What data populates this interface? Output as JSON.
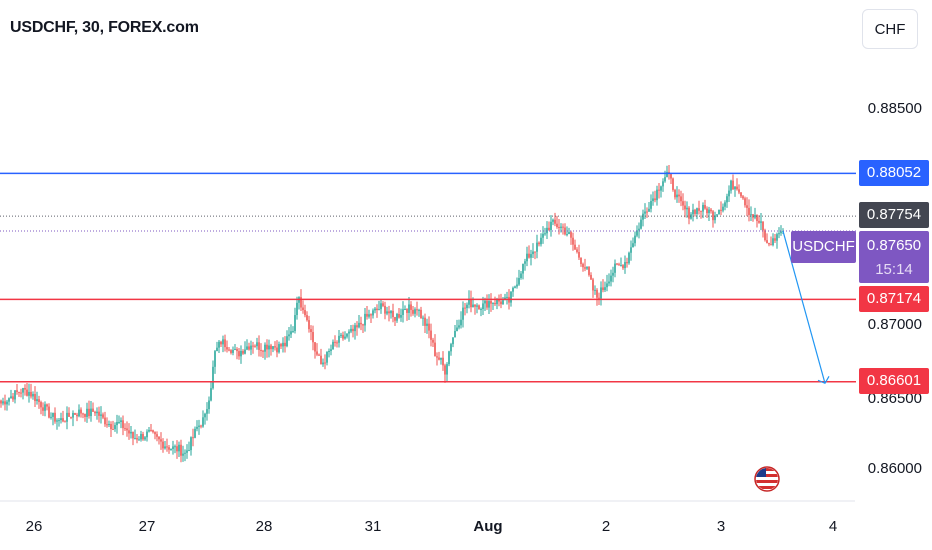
{
  "header": {
    "title": "USDCHF, 30, FOREX.com",
    "currency_button": "CHF"
  },
  "price_scale": {
    "ticks": [
      "0.88500",
      "0.87000",
      "0.86500",
      "0.86000"
    ],
    "labels": {
      "resistance": "0.88052",
      "prev_close": "0.87754",
      "current_symbol": "USDCHF",
      "current_price": "0.87650",
      "countdown": "15:14",
      "support_1": "0.87174",
      "support_2": "0.86601"
    }
  },
  "time_scale": {
    "ticks": [
      "26",
      "27",
      "28",
      "31",
      "Aug",
      "2",
      "3",
      "4"
    ]
  },
  "colors": {
    "bull": "#26a69a",
    "bear": "#ef5350",
    "resistance_line": "#2962ff",
    "support_line": "#f23645",
    "current_label": "#7e57c2",
    "prev_close_label": "#434651",
    "projection_arrow": "#2196f3"
  },
  "chart_data": {
    "type": "candlestick",
    "symbol": "USDCHF",
    "interval": "30",
    "exchange": "FOREX.com",
    "ylim": [
      0.8575,
      0.8905
    ],
    "horizontal_levels": [
      {
        "kind": "resistance",
        "value": 0.88052
      },
      {
        "kind": "support",
        "value": 0.87174
      },
      {
        "kind": "support",
        "value": 0.86601
      }
    ],
    "last_price": 0.8765,
    "previous_close": 0.87754,
    "projection": {
      "from": 0.8765,
      "to": 0.8659,
      "direction": "down"
    },
    "price_path": [
      [
        0,
        0.8645
      ],
      [
        4,
        0.8649
      ],
      [
        10,
        0.8654
      ],
      [
        14,
        0.8653
      ],
      [
        17,
        0.8649
      ],
      [
        21,
        0.8643
      ],
      [
        25,
        0.8636
      ],
      [
        29,
        0.8633
      ],
      [
        33,
        0.8635
      ],
      [
        36,
        0.8638
      ],
      [
        40,
        0.8639
      ],
      [
        44,
        0.8638
      ],
      [
        47,
        0.864
      ],
      [
        51,
        0.8634
      ],
      [
        55,
        0.863
      ],
      [
        59,
        0.8631
      ],
      [
        62,
        0.8628
      ],
      [
        66,
        0.8621
      ],
      [
        70,
        0.8622
      ],
      [
        74,
        0.8624
      ],
      [
        78,
        0.862
      ],
      [
        81,
        0.8617
      ],
      [
        85,
        0.8614
      ],
      [
        89,
        0.8613
      ],
      [
        92,
        0.861
      ],
      [
        95,
        0.8618
      ],
      [
        98,
        0.8628
      ],
      [
        102,
        0.8635
      ],
      [
        105,
        0.8658
      ],
      [
        107,
        0.868
      ],
      [
        110,
        0.8688
      ],
      [
        114,
        0.8685
      ],
      [
        118,
        0.8679
      ],
      [
        122,
        0.8684
      ],
      [
        126,
        0.8687
      ],
      [
        130,
        0.8684
      ],
      [
        134,
        0.8686
      ],
      [
        138,
        0.8684
      ],
      [
        142,
        0.8686
      ],
      [
        146,
        0.8697
      ],
      [
        148,
        0.8718
      ],
      [
        151,
        0.8713
      ],
      [
        154,
        0.87
      ],
      [
        157,
        0.8682
      ],
      [
        160,
        0.8672
      ],
      [
        163,
        0.8678
      ],
      [
        166,
        0.8685
      ],
      [
        170,
        0.869
      ],
      [
        174,
        0.8693
      ],
      [
        178,
        0.8697
      ],
      [
        182,
        0.8704
      ],
      [
        186,
        0.8708
      ],
      [
        190,
        0.8712
      ],
      [
        193,
        0.871
      ],
      [
        196,
        0.8704
      ],
      [
        199,
        0.8707
      ],
      [
        202,
        0.8712
      ],
      [
        205,
        0.871
      ],
      [
        208,
        0.8712
      ],
      [
        211,
        0.8703
      ],
      [
        214,
        0.8695
      ],
      [
        217,
        0.868
      ],
      [
        220,
        0.8674
      ],
      [
        222,
        0.8668
      ],
      [
        225,
        0.8688
      ],
      [
        228,
        0.8699
      ],
      [
        231,
        0.871
      ],
      [
        234,
        0.8715
      ],
      [
        238,
        0.8714
      ],
      [
        241,
        0.8713
      ],
      [
        244,
        0.8716
      ],
      [
        247,
        0.8716
      ],
      [
        250,
        0.8716
      ],
      [
        254,
        0.8716
      ],
      [
        257,
        0.8727
      ],
      [
        260,
        0.8738
      ],
      [
        263,
        0.8746
      ],
      [
        266,
        0.8752
      ],
      [
        269,
        0.8755
      ],
      [
        272,
        0.8765
      ],
      [
        275,
        0.877
      ],
      [
        278,
        0.8769
      ],
      [
        281,
        0.8767
      ],
      [
        284,
        0.8762
      ],
      [
        287,
        0.8752
      ],
      [
        290,
        0.8745
      ],
      [
        293,
        0.8737
      ],
      [
        296,
        0.8724
      ],
      [
        298,
        0.8719
      ],
      [
        301,
        0.8725
      ],
      [
        304,
        0.8733
      ],
      [
        307,
        0.8739
      ],
      [
        310,
        0.8741
      ],
      [
        313,
        0.8745
      ],
      [
        315,
        0.8755
      ],
      [
        318,
        0.8765
      ],
      [
        321,
        0.8776
      ],
      [
        324,
        0.8784
      ],
      [
        327,
        0.879
      ],
      [
        330,
        0.8799
      ],
      [
        333,
        0.8805
      ],
      [
        336,
        0.8796
      ],
      [
        338,
        0.8788
      ],
      [
        341,
        0.8781
      ],
      [
        344,
        0.8777
      ],
      [
        347,
        0.878
      ],
      [
        350,
        0.878
      ],
      [
        353,
        0.878
      ],
      [
        356,
        0.8776
      ],
      [
        359,
        0.8781
      ],
      [
        362,
        0.8785
      ],
      [
        365,
        0.8797
      ],
      [
        368,
        0.8797
      ],
      [
        371,
        0.8789
      ],
      [
        374,
        0.8779
      ],
      [
        377,
        0.8774
      ],
      [
        380,
        0.8769
      ],
      [
        383,
        0.8755
      ],
      [
        386,
        0.8758
      ],
      [
        389,
        0.8764
      ],
      [
        391,
        0.8766
      ]
    ]
  }
}
